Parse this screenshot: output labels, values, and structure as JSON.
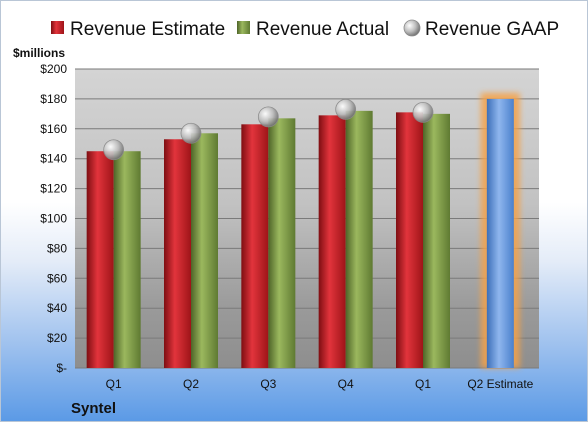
{
  "company": "Syntel",
  "chart_data": {
    "type": "bar",
    "title": "",
    "units_label": "$millions",
    "categories": [
      "Q1",
      "Q2",
      "Q3",
      "Q4",
      "Q1",
      "Q2 Estimate"
    ],
    "series": [
      {
        "name": "Revenue Estimate",
        "kind": "bar",
        "color": "#c8202a",
        "values": [
          145,
          153,
          163,
          169,
          171,
          null
        ]
      },
      {
        "name": "Revenue Actual",
        "kind": "bar",
        "color": "#7f9a48",
        "values": [
          145,
          157,
          167,
          172,
          170,
          null
        ]
      },
      {
        "name": "Revenue GAAP",
        "kind": "marker",
        "color": "#a6a6a6",
        "values": [
          146,
          157,
          168,
          173,
          171,
          null
        ]
      },
      {
        "name": "",
        "kind": "highlight-bar",
        "color": "#5b8fd6",
        "glow": "#f4a24a",
        "values": [
          null,
          null,
          null,
          null,
          null,
          180
        ]
      }
    ],
    "yticks": [
      "$-",
      "$20",
      "$40",
      "$60",
      "$80",
      "$100",
      "$120",
      "$140",
      "$160",
      "$180",
      "$200"
    ],
    "ylim": [
      0,
      200
    ],
    "grid": true,
    "legend": "top"
  }
}
